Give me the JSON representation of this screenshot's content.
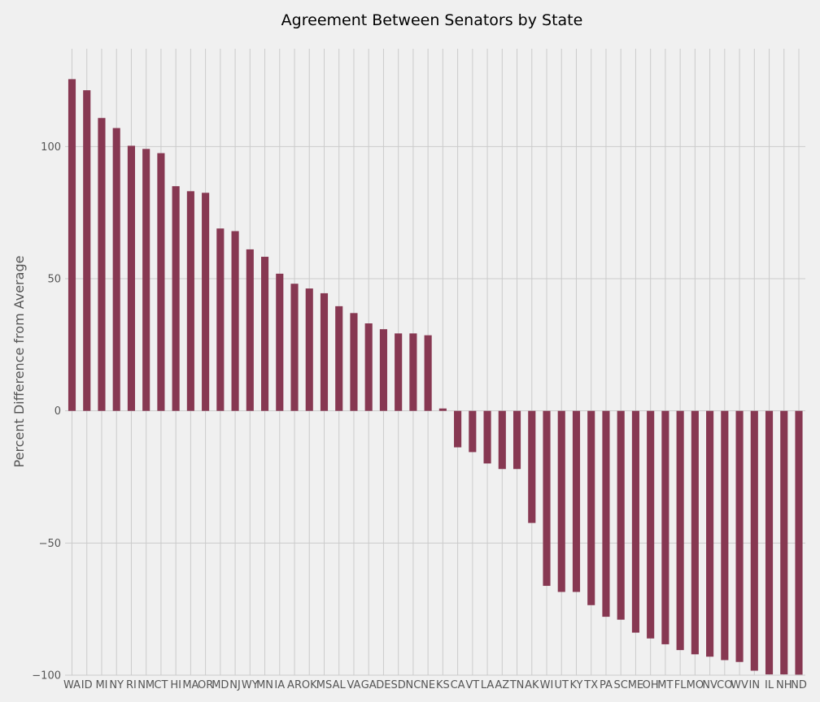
{
  "chart_data": {
    "type": "bar",
    "title": "Agreement Between Senators by State",
    "xlabel": "",
    "ylabel": "Percent Difference from Average",
    "ylim": [
      -100,
      137
    ],
    "yticks": [
      100,
      50,
      0,
      -50,
      -100
    ],
    "ytick_labels": [
      "100",
      "50",
      "0",
      "−50",
      "−100"
    ],
    "grid": true,
    "bar_color": "#873852",
    "categories": [
      "WA",
      "ID",
      "MI",
      "NY",
      "RI",
      "NM",
      "CT",
      "HI",
      "MA",
      "OR",
      "MD",
      "NJ",
      "WY",
      "MN",
      "IA",
      "AR",
      "OK",
      "MS",
      "AL",
      "VA",
      "GA",
      "DE",
      "SD",
      "NC",
      "NE",
      "KS",
      "CA",
      "VT",
      "LA",
      "AZ",
      "TN",
      "AK",
      "WI",
      "UT",
      "KY",
      "TX",
      "PA",
      "SC",
      "ME",
      "OH",
      "MT",
      "FL",
      "MO",
      "NV",
      "CO",
      "WV",
      "IN",
      "IL",
      "NH",
      "ND"
    ],
    "values": [
      125.5,
      121.3,
      110.8,
      107,
      100.3,
      99.1,
      97.5,
      85,
      83.1,
      82.5,
      69,
      68,
      61.1,
      58.3,
      51.9,
      48.1,
      46.3,
      44.5,
      39.6,
      37,
      33.1,
      30.9,
      29.3,
      29.3,
      28.6,
      0.9,
      -13.8,
      -15.6,
      -19.9,
      -22,
      -22,
      -42.4,
      -66.2,
      -68.5,
      -68.5,
      -73.5,
      -77.9,
      -79,
      -83.9,
      -86.1,
      -88.3,
      -90.5,
      -92.1,
      -93,
      -94.3,
      -95,
      -98.3,
      -99.7,
      -99.7,
      -99.8
    ]
  }
}
